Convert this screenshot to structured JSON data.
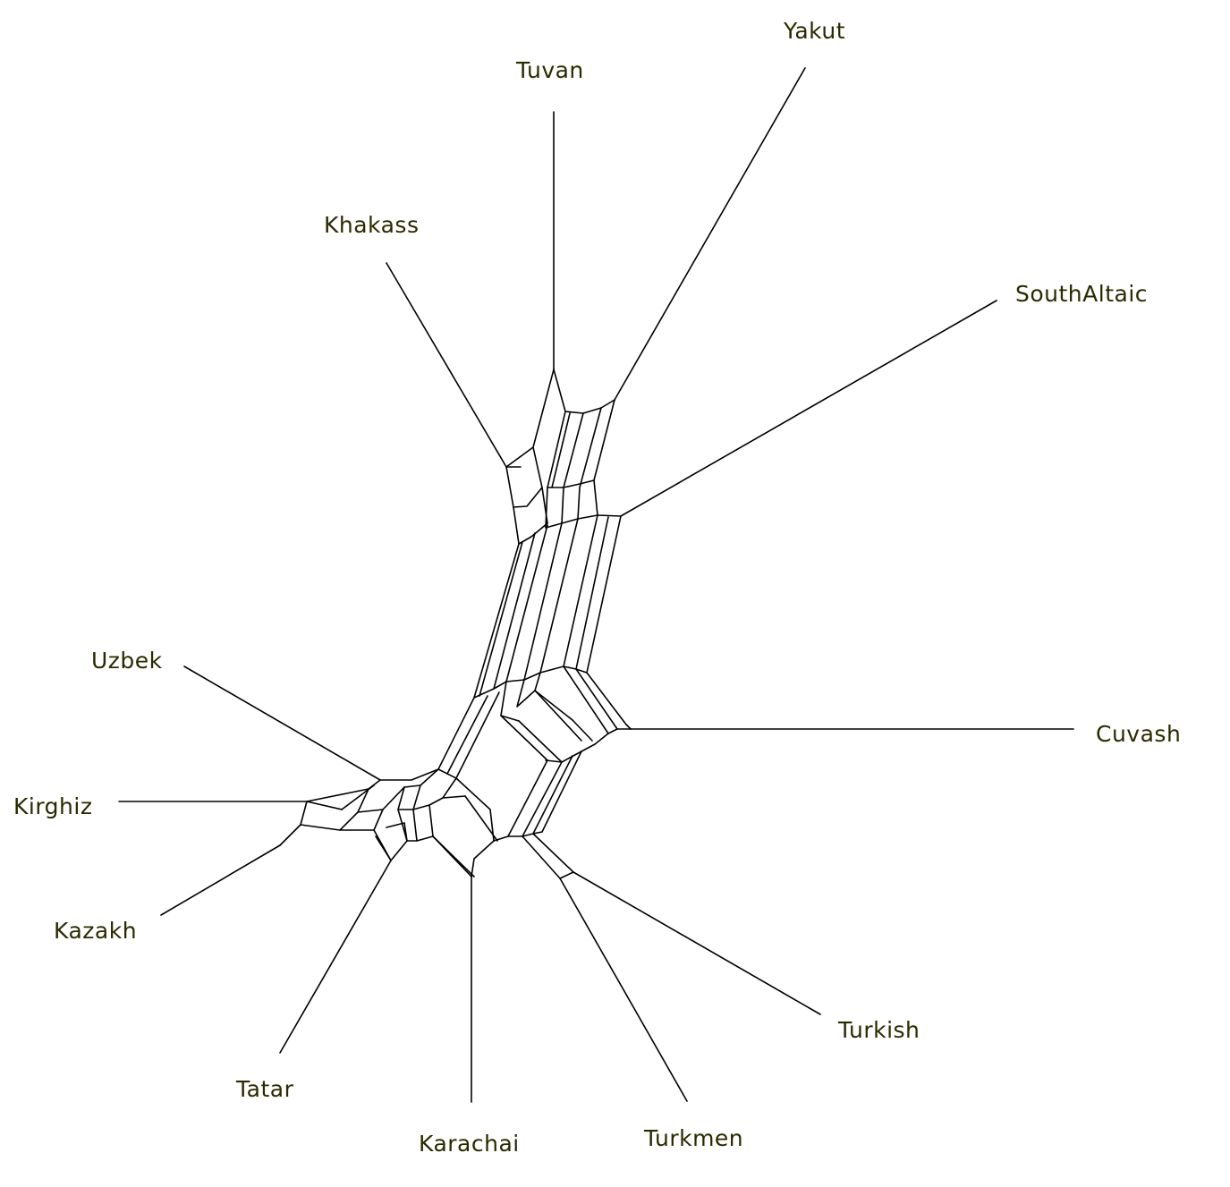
{
  "diagram": {
    "type": "split-network",
    "label_color": "#2a2a00",
    "edge_color": "#000000",
    "taxa": [
      {
        "id": "yakut",
        "label": "Yakut"
      },
      {
        "id": "tuvan",
        "label": "Tuvan"
      },
      {
        "id": "khakass",
        "label": "Khakass"
      },
      {
        "id": "southaltaic",
        "label": "SouthAltaic"
      },
      {
        "id": "cuvash",
        "label": "Cuvash"
      },
      {
        "id": "uzbek",
        "label": "Uzbek"
      },
      {
        "id": "kirghiz",
        "label": "Kirghiz"
      },
      {
        "id": "kazakh",
        "label": "Kazakh"
      },
      {
        "id": "tatar",
        "label": "Tatar"
      },
      {
        "id": "karachai",
        "label": "Karachai"
      },
      {
        "id": "turkmen",
        "label": "Turkmen"
      },
      {
        "id": "turkish",
        "label": "Turkish"
      }
    ]
  }
}
